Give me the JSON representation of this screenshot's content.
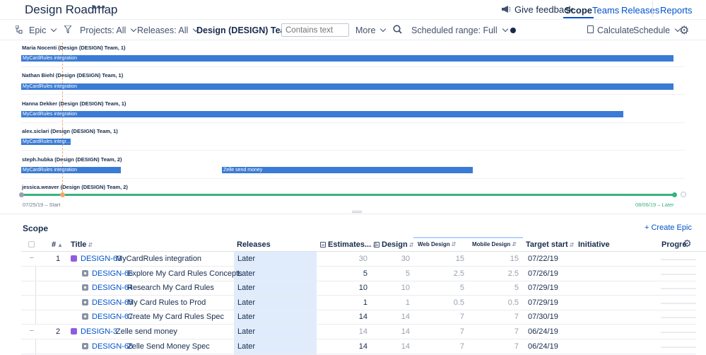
{
  "header": {
    "title": "Design Roadmap",
    "more": "•••",
    "feedback": "Give feedback",
    "tabs": [
      {
        "label": "Scope",
        "active": true
      },
      {
        "label": "Teams",
        "active": false
      },
      {
        "label": "Releases",
        "active": false
      },
      {
        "label": "Reports",
        "active": false
      }
    ]
  },
  "toolbar": {
    "epic": "Epic",
    "projects": "Projects: All",
    "releases": "Releases: All",
    "team": "Design (DESIGN) Team",
    "search_placeholder": "Contains text",
    "more": "More",
    "scheduled_range": "Scheduled range: Full",
    "calculate": "Calculate",
    "schedule": "Schedule"
  },
  "timeline": {
    "lanes": [
      {
        "label": "Maria Nocenti (Design (DESIGN) Team, 1)",
        "bars": [
          {
            "label": "MyCardRules integration"
          }
        ]
      },
      {
        "label": "Nathan Biehl (Design (DESIGN) Team, 1)",
        "bars": [
          {
            "label": "MyCardRules integration"
          }
        ]
      },
      {
        "label": "Hanna Dekker (Design (DESIGN) Team, 1)",
        "bars": [
          {
            "label": "MyCardRules integration"
          }
        ]
      },
      {
        "label": "alex.siclari (Design (DESIGN) Team, 1)",
        "bars": [
          {
            "label": "MyCardRules integr..."
          }
        ]
      },
      {
        "label": "steph.hubka (Design (DESIGN) Team, 2)",
        "bars": [
          {
            "label": "MyCardRules integration"
          },
          {
            "label": "Zelle send money"
          }
        ]
      },
      {
        "label": "jessica.weaver (Design (DESIGN) Team, 2)",
        "bars": []
      }
    ],
    "start_label": "07/25/19 – Start",
    "end_label": "08/06/19 – Later"
  },
  "scope": {
    "title": "Scope",
    "create_epic": "+ Create Epic",
    "columns": {
      "rank": "#",
      "title": "Title",
      "releases": "Releases",
      "estimates": "Estimates...",
      "design": "Design",
      "web_design": "Web Design",
      "mobile_design": "Mobile Design",
      "target_start": "Target start",
      "initiative": "Initiative",
      "progress": "Progre"
    },
    "rows": [
      {
        "rank": "1",
        "key": "DESIGN-63",
        "summary": "MyCardRules integration",
        "type": "epic",
        "release": "Later",
        "estimate": "30",
        "design": "30",
        "web": "15",
        "mobile": "15",
        "target_start": "07/22/19"
      },
      {
        "rank": "",
        "key": "DESIGN-66",
        "summary": "Explore My Card Rules Concepts",
        "type": "story",
        "release": "Later",
        "estimate": "5",
        "design": "5",
        "web": "2.5",
        "mobile": "2.5",
        "target_start": "07/26/19"
      },
      {
        "rank": "",
        "key": "DESIGN-64",
        "summary": "Research My Card Rules",
        "type": "story",
        "release": "Later",
        "estimate": "10",
        "design": "10",
        "web": "5",
        "mobile": "5",
        "target_start": "07/29/19"
      },
      {
        "rank": "",
        "key": "DESIGN-65",
        "summary": "My Card Rules to Prod",
        "type": "story",
        "release": "Later",
        "estimate": "1",
        "design": "1",
        "web": "0.5",
        "mobile": "0.5",
        "target_start": "07/29/19"
      },
      {
        "rank": "",
        "key": "DESIGN-67",
        "summary": "Create My Card Rules Spec",
        "type": "story",
        "release": "Later",
        "estimate": "14",
        "design": "14",
        "web": "7",
        "mobile": "7",
        "target_start": "07/30/19"
      },
      {
        "rank": "2",
        "key": "DESIGN-3",
        "summary": "Zelle send money",
        "type": "epic",
        "release": "Later",
        "estimate": "14",
        "design": "14",
        "web": "7",
        "mobile": "7",
        "target_start": "06/24/19"
      },
      {
        "rank": "",
        "key": "DESIGN-68",
        "summary": "Zelle Send Money Spec",
        "type": "story",
        "release": "Later",
        "estimate": "14",
        "design": "14",
        "web": "7",
        "mobile": "7",
        "target_start": "06/24/19"
      }
    ]
  }
}
